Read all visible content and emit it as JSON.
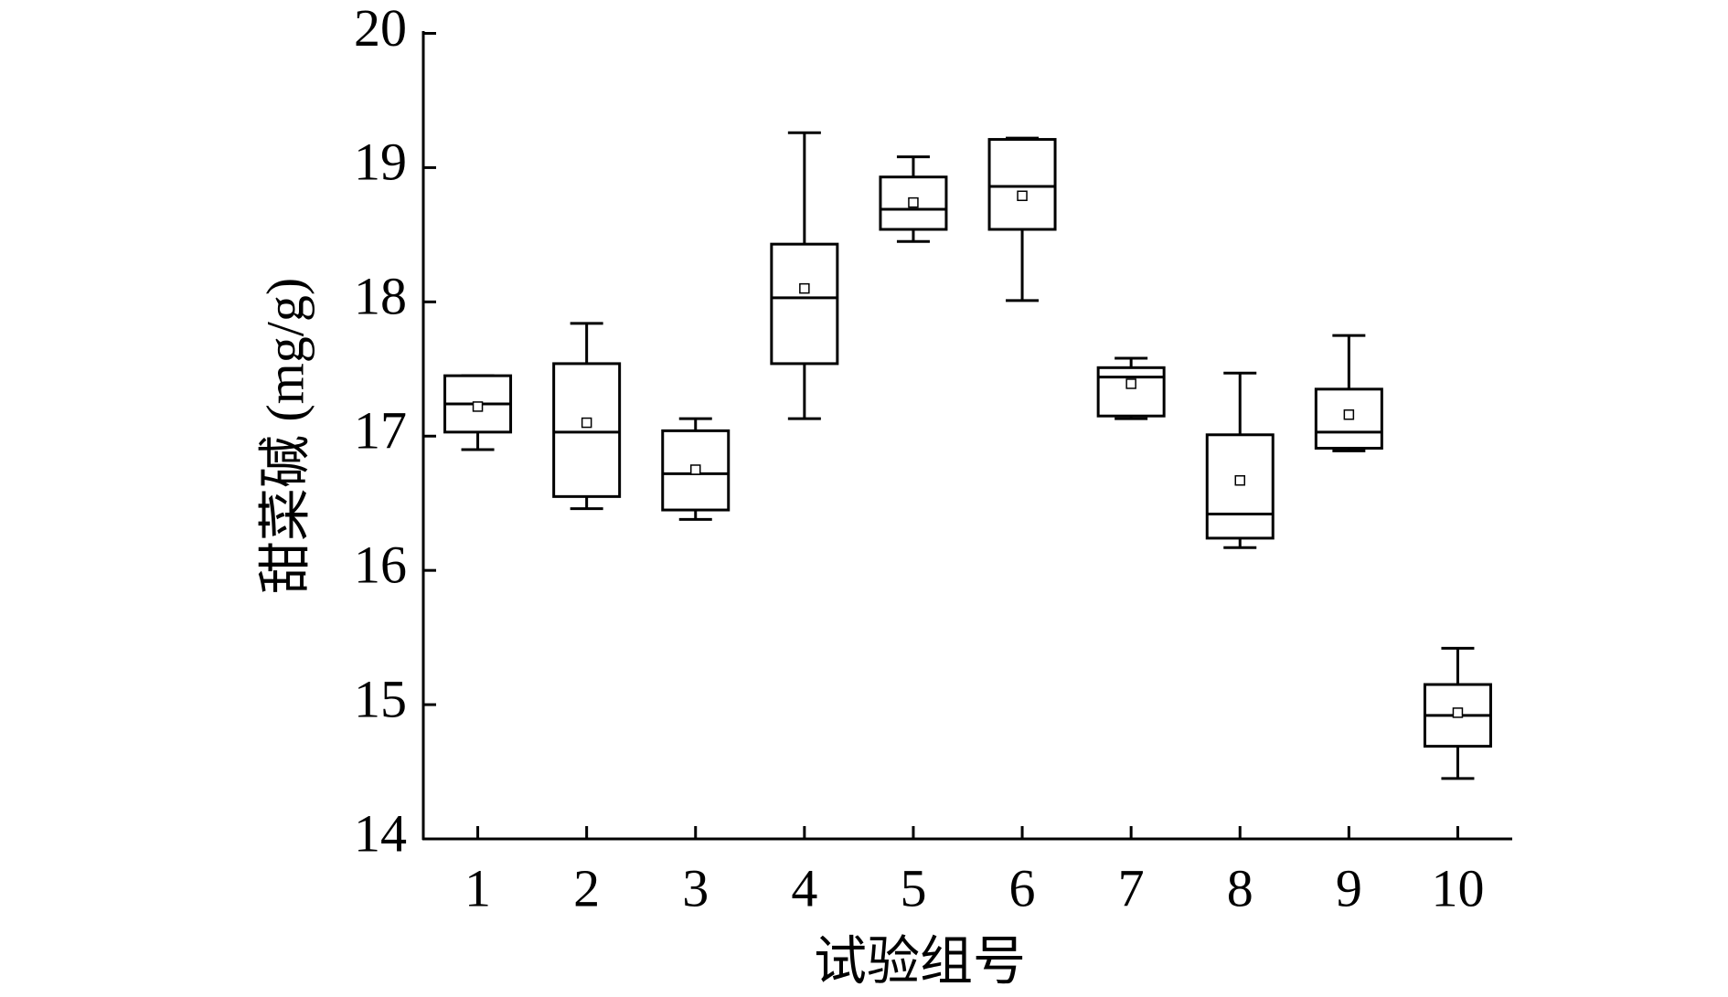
{
  "chart_data": {
    "type": "box",
    "ylabel": "甜菜碱 (mg/g)",
    "xlabel": "试验组号",
    "categories": [
      "1",
      "2",
      "3",
      "4",
      "5",
      "6",
      "7",
      "8",
      "9",
      "10"
    ],
    "whisker_high": [
      17.45,
      17.84,
      17.13,
      19.26,
      19.08,
      19.22,
      17.58,
      17.47,
      17.75,
      15.42
    ],
    "q3": [
      17.45,
      17.54,
      17.04,
      18.43,
      18.93,
      19.21,
      17.51,
      17.01,
      17.35,
      15.15
    ],
    "median": [
      17.24,
      17.03,
      16.72,
      18.03,
      18.69,
      18.86,
      17.44,
      16.42,
      17.03,
      14.92
    ],
    "q1": [
      17.03,
      16.55,
      16.45,
      17.54,
      18.54,
      18.54,
      17.15,
      16.24,
      16.91,
      14.69
    ],
    "whisker_low": [
      16.9,
      16.46,
      16.38,
      17.13,
      18.45,
      18.01,
      17.13,
      16.17,
      16.89,
      14.45
    ],
    "mean": [
      17.22,
      17.1,
      16.75,
      18.1,
      18.74,
      18.79,
      17.39,
      16.67,
      17.16,
      14.94
    ],
    "color": "#000000",
    "ylim": [
      14,
      20
    ],
    "yticks": [
      14,
      15,
      16,
      17,
      18,
      19,
      20
    ]
  }
}
